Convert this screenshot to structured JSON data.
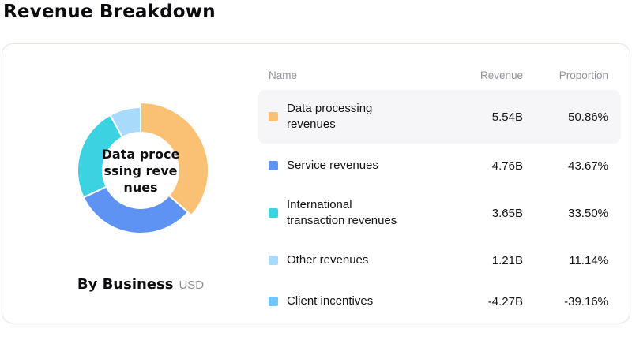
{
  "title": "Revenue Breakdown",
  "chart_data": {
    "type": "pie",
    "subtype": "donut",
    "caption": "By Business",
    "unit": "USD",
    "center_label": "Data processing revenues",
    "center_label_lines": [
      "Data proce",
      "ssing reve",
      "nues"
    ],
    "legend_position": "right-table",
    "segments": [
      {
        "name": "Data processing revenues",
        "value": 5.54,
        "revenue": "5.54B",
        "proportion": "50.86%",
        "proportion_value": 50.86,
        "color": "#FAC175",
        "highlighted": true,
        "in_donut": true
      },
      {
        "name": "Service revenues",
        "value": 4.76,
        "revenue": "4.76B",
        "proportion": "43.67%",
        "proportion_value": 43.67,
        "color": "#5E93F3",
        "highlighted": false,
        "in_donut": true
      },
      {
        "name": "International transaction revenues",
        "value": 3.65,
        "revenue": "3.65B",
        "proportion": "33.50%",
        "proportion_value": 33.5,
        "color": "#3BD3E1",
        "highlighted": false,
        "in_donut": true
      },
      {
        "name": "Other revenues",
        "value": 1.21,
        "revenue": "1.21B",
        "proportion": "11.14%",
        "proportion_value": 11.14,
        "color": "#A8DAFB",
        "highlighted": false,
        "in_donut": true
      },
      {
        "name": "Client incentives",
        "value": -4.27,
        "revenue": "-4.27B",
        "proportion": "-39.16%",
        "proportion_value": -39.16,
        "color": "#74C5F6",
        "highlighted": false,
        "in_donut": false
      }
    ]
  },
  "table": {
    "columns": [
      "Name",
      "Revenue",
      "Proportion"
    ]
  },
  "colors": {
    "highlight_row_bg": "#f6f6f8",
    "card_border": "#e5e5ef",
    "header_text": "#93939b",
    "muted_text": "#8e8e95"
  }
}
